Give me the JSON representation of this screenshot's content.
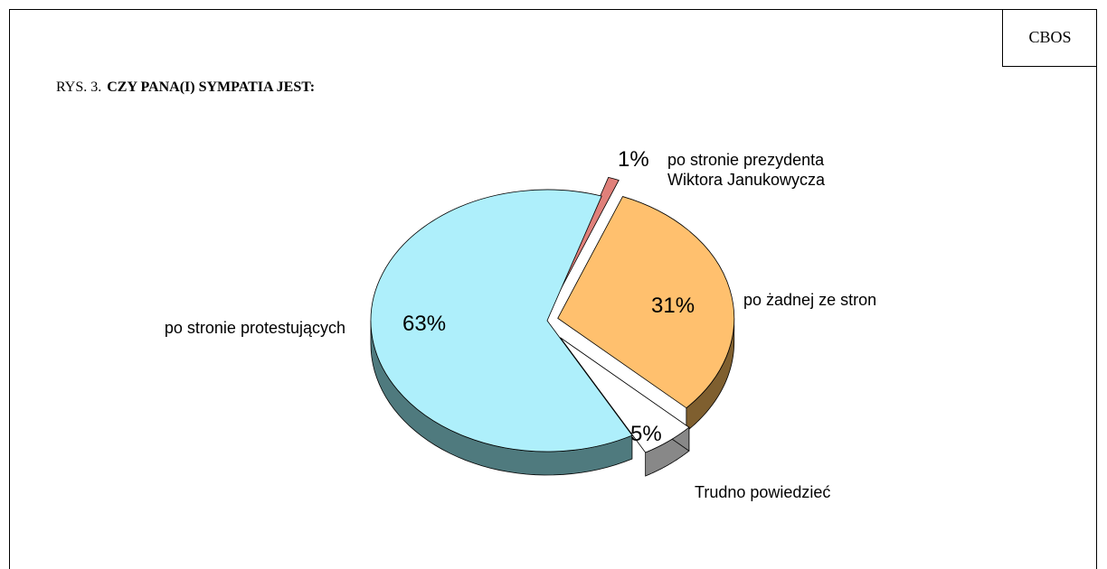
{
  "source": "CBOS",
  "chart_data": {
    "type": "pie",
    "figure_label": "RYS. 3.",
    "title": "CZY PANA(I) SYMPATIA JEST:",
    "categories": [
      "po stronie prezydenta Wiktora Janukowycza",
      "po żadnej ze stron",
      "Trudno powiedzieć",
      "po stronie protestujących"
    ],
    "values": [
      1,
      31,
      5,
      63
    ],
    "value_labels": [
      "1%",
      "31%",
      "5%",
      "63%"
    ],
    "colors": [
      "#e0807a",
      "#ffc06e",
      "#ffffff",
      "#aeeffb"
    ]
  }
}
